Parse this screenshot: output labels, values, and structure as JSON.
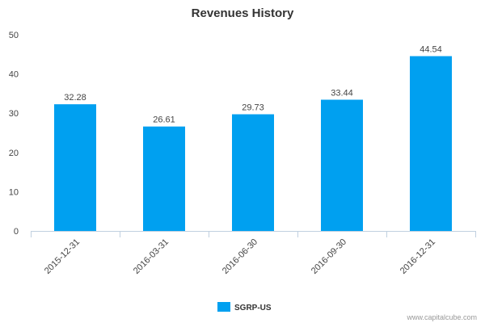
{
  "chart_data": {
    "type": "bar",
    "title": "Revenues History",
    "categories": [
      "2015-12-31",
      "2016-03-31",
      "2016-06-30",
      "2016-09-30",
      "2016-12-31"
    ],
    "series": [
      {
        "name": "SGRP-US",
        "values": [
          32.28,
          26.61,
          29.73,
          33.44,
          44.54
        ]
      }
    ],
    "data_labels": [
      "32.28",
      "26.61",
      "29.73",
      "33.44",
      "44.54"
    ],
    "ylim": [
      0,
      50
    ],
    "y_ticks": [
      0,
      10,
      20,
      30,
      40,
      50
    ],
    "grid": false,
    "legend_position": "bottom-center",
    "bar_color": "#00a0f0",
    "credit": "www.capitalcube.com"
  }
}
